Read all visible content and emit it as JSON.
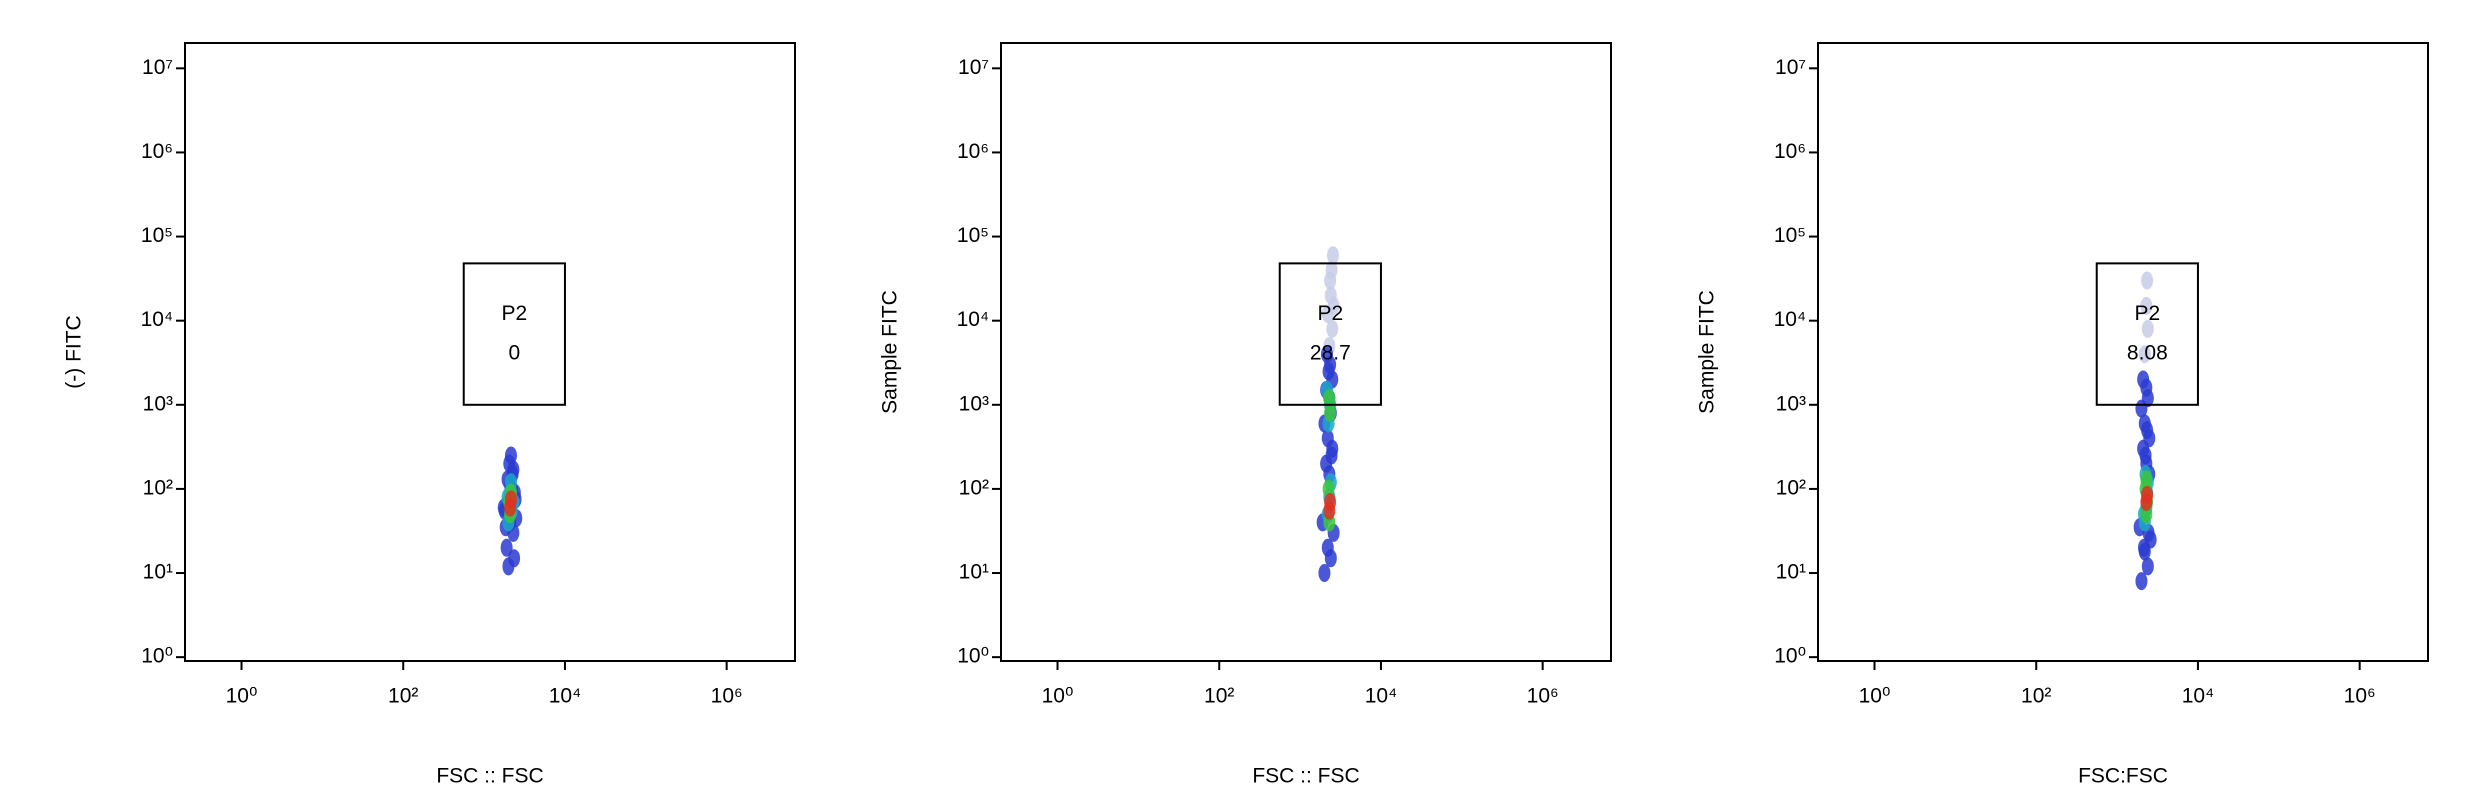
{
  "chart_data": [
    {
      "type": "scatter",
      "log_scale": true,
      "x_label": "FSC :: FSC",
      "y_label": "(-) FITC",
      "xlim": [
        0.2,
        7000000
      ],
      "ylim": [
        0.9,
        20000000
      ],
      "xticks": [
        {
          "value": 1,
          "label": "10⁰"
        },
        {
          "value": 100,
          "label": "10²"
        },
        {
          "value": 10000,
          "label": "10⁴"
        },
        {
          "value": 1000000,
          "label": "10⁶"
        }
      ],
      "yticks": [
        {
          "value": 1,
          "label": "10⁰"
        },
        {
          "value": 10,
          "label": "10¹"
        },
        {
          "value": 100,
          "label": "10²"
        },
        {
          "value": 1000,
          "label": "10³"
        },
        {
          "value": 10000,
          "label": "10⁴"
        },
        {
          "value": 100000,
          "label": "10⁵"
        },
        {
          "value": 1000000,
          "label": "10⁶"
        },
        {
          "value": 10000000,
          "label": "10⁷"
        }
      ],
      "groups": [
        {
          "color": "#2a3bd0",
          "x": [
            1900,
            2300,
            2100,
            2500,
            1800,
            2200,
            2000,
            2400,
            2100,
            1950,
            2250,
            2050,
            2150,
            2350,
            1850,
            2200,
            2000,
            2300,
            2450,
            1750
          ],
          "y": [
            20,
            30,
            40,
            45,
            55,
            65,
            70,
            90,
            110,
            130,
            150,
            200,
            250,
            15,
            35,
            100,
            12,
            170,
            75,
            60
          ]
        },
        {
          "color": "#1aa8c8",
          "x": [
            2000,
            2200,
            2100,
            2300,
            1950,
            2150
          ],
          "y": [
            40,
            55,
            90,
            70,
            80,
            120
          ]
        },
        {
          "color": "#3cc43c",
          "x": [
            2100,
            2150,
            2050
          ],
          "y": [
            50,
            90,
            70
          ]
        },
        {
          "color": "#e03020",
          "x": [
            2100,
            2150
          ],
          "y": [
            60,
            75
          ]
        }
      ],
      "gate": {
        "label": "P2",
        "percent": 0,
        "x": [
          560,
          10000
        ],
        "y": [
          1000,
          48000
        ]
      }
    },
    {
      "type": "scatter",
      "log_scale": true,
      "x_label": "FSC :: FSC",
      "y_label": "Sample FITC",
      "xlim": [
        0.2,
        7000000
      ],
      "ylim": [
        0.9,
        20000000
      ],
      "xticks": [
        {
          "value": 1,
          "label": "10⁰"
        },
        {
          "value": 100,
          "label": "10²"
        },
        {
          "value": 10000,
          "label": "10⁴"
        },
        {
          "value": 1000000,
          "label": "10⁶"
        }
      ],
      "yticks": [
        {
          "value": 1,
          "label": "10⁰"
        },
        {
          "value": 10,
          "label": "10¹"
        },
        {
          "value": 100,
          "label": "10²"
        },
        {
          "value": 1000,
          "label": "10³"
        },
        {
          "value": 10000,
          "label": "10⁴"
        },
        {
          "value": 100000,
          "label": "10⁵"
        },
        {
          "value": 1000000,
          "label": "10⁶"
        },
        {
          "value": 10000000,
          "label": "10⁷"
        }
      ],
      "groups": [
        {
          "color": "#c8cce8",
          "x": [
            2300,
            2500,
            2200,
            2600,
            2400,
            2350,
            2450,
            2550
          ],
          "y": [
            5000,
            8000,
            12000,
            15000,
            20000,
            30000,
            40000,
            60000
          ]
        },
        {
          "color": "#2a3bd0",
          "x": [
            2000,
            2400,
            2200,
            2600,
            1900,
            2300,
            2100,
            2500,
            2200,
            2000,
            2400,
            2300,
            2100,
            2500,
            2250,
            2350,
            2150,
            2450
          ],
          "y": [
            10,
            15,
            20,
            30,
            40,
            150,
            200,
            300,
            400,
            600,
            800,
            1200,
            1500,
            2000,
            2500,
            3000,
            4000,
            250
          ]
        },
        {
          "color": "#1aa8c8",
          "x": [
            2200,
            2300,
            2400,
            2250,
            2350,
            2150
          ],
          "y": [
            50,
            80,
            120,
            600,
            1000,
            1500
          ]
        },
        {
          "color": "#3cc43c",
          "x": [
            2300,
            2250,
            2350,
            2300
          ],
          "y": [
            40,
            100,
            800,
            1200
          ]
        },
        {
          "color": "#e03020",
          "x": [
            2300,
            2350
          ],
          "y": [
            55,
            70
          ]
        }
      ],
      "gate": {
        "label": "P2",
        "percent": 28.7,
        "x": [
          560,
          10000
        ],
        "y": [
          1000,
          48000
        ]
      }
    },
    {
      "type": "scatter",
      "log_scale": true,
      "x_label": "FSC:FSC",
      "y_label": "Sample FITC",
      "xlim": [
        0.2,
        7000000
      ],
      "ylim": [
        0.9,
        20000000
      ],
      "xticks": [
        {
          "value": 1,
          "label": "10⁰"
        },
        {
          "value": 100,
          "label": "10²"
        },
        {
          "value": 10000,
          "label": "10⁴"
        },
        {
          "value": 1000000,
          "label": "10⁶"
        }
      ],
      "yticks": [
        {
          "value": 1,
          "label": "10⁰"
        },
        {
          "value": 10,
          "label": "10¹"
        },
        {
          "value": 100,
          "label": "10²"
        },
        {
          "value": 1000,
          "label": "10³"
        },
        {
          "value": 10000,
          "label": "10⁴"
        },
        {
          "value": 100000,
          "label": "10⁵"
        },
        {
          "value": 1000000,
          "label": "10⁶"
        },
        {
          "value": 10000000,
          "label": "10⁷"
        }
      ],
      "groups": [
        {
          "color": "#c8cce8",
          "x": [
            2200,
            2400,
            2300,
            2350
          ],
          "y": [
            4000,
            8000,
            15000,
            30000
          ]
        },
        {
          "color": "#2a3bd0",
          "x": [
            2000,
            2400,
            2200,
            2600,
            1900,
            2300,
            2100,
            2500,
            2200,
            2000,
            2400,
            2300,
            2100,
            2500,
            2250,
            2350,
            2150,
            2450
          ],
          "y": [
            8,
            12,
            18,
            25,
            35,
            200,
            300,
            400,
            600,
            900,
            1200,
            1600,
            2000,
            150,
            250,
            500,
            20,
            30
          ]
        },
        {
          "color": "#1aa8c8",
          "x": [
            2200,
            2300,
            2400,
            2250,
            2350,
            2150
          ],
          "y": [
            40,
            60,
            120,
            150,
            90,
            50
          ]
        },
        {
          "color": "#3cc43c",
          "x": [
            2300,
            2250,
            2350,
            2300
          ],
          "y": [
            50,
            100,
            70,
            130
          ]
        },
        {
          "color": "#e03020",
          "x": [
            2300,
            2350
          ],
          "y": [
            70,
            85
          ]
        }
      ],
      "gate": {
        "label": "P2",
        "percent": 8.08,
        "x": [
          560,
          10000
        ],
        "y": [
          1000,
          48000
        ]
      }
    }
  ]
}
